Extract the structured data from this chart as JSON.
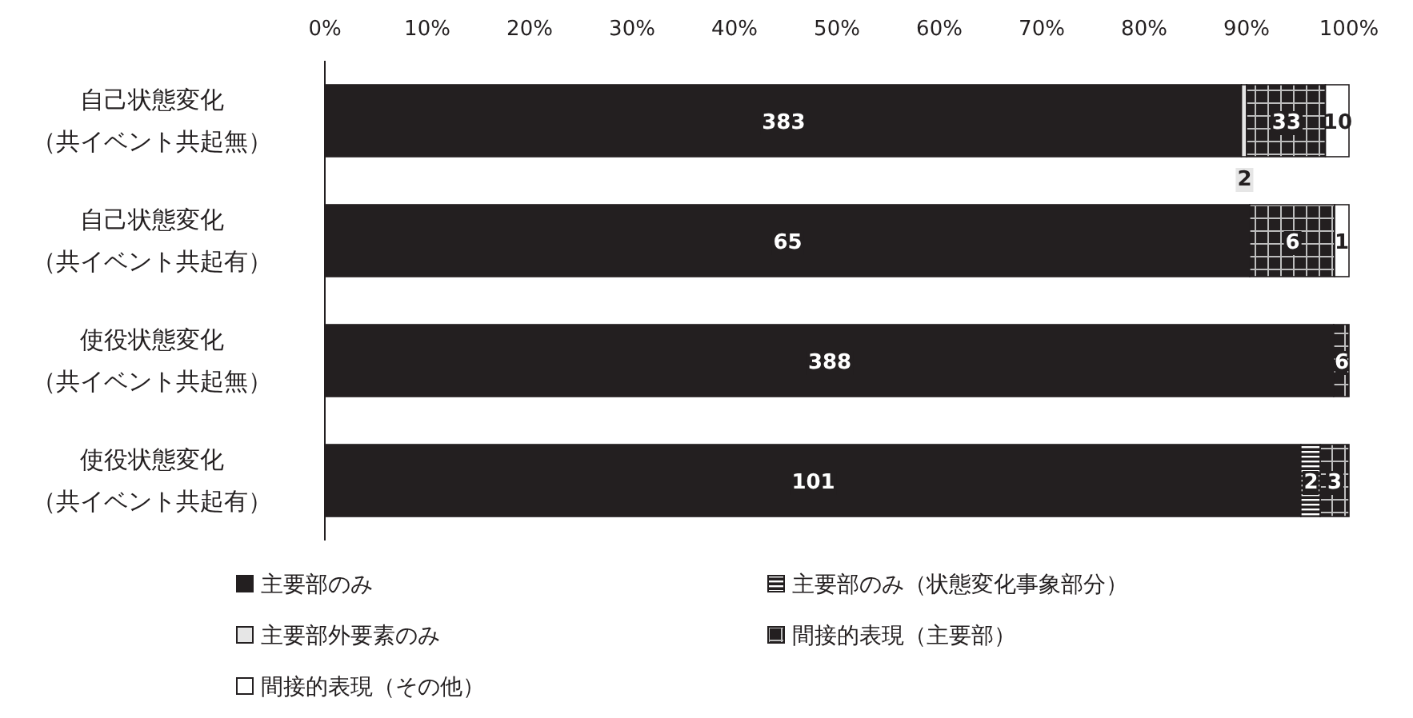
{
  "chart_data": {
    "type": "bar",
    "orientation": "horizontal",
    "stacked": true,
    "categories": [
      "自己状態変化（共イベント共起無）",
      "自己状態変化（共イベント共起有）",
      "使役状態変化（共イベント共起無）",
      "使役状態変化（共イベント共起有）"
    ],
    "xlim": [
      0,
      100
    ],
    "xticks": [
      {
        "value": 0,
        "label": "0%"
      },
      {
        "value": 10,
        "label": "10%"
      },
      {
        "value": 20,
        "label": "20%"
      },
      {
        "value": 30,
        "label": "30%"
      },
      {
        "value": 40,
        "label": "40%"
      },
      {
        "value": 50,
        "label": "50%"
      },
      {
        "value": 60,
        "label": "60%"
      },
      {
        "value": 70,
        "label": "70%"
      },
      {
        "value": 80,
        "label": "80%"
      },
      {
        "value": 90,
        "label": "90%"
      },
      {
        "value": 100,
        "label": "100%"
      }
    ],
    "grid": false,
    "legend": "bottom",
    "series": [
      {
        "name": "主要部のみ",
        "color": "#231f20",
        "values": [
          89.5,
          90.3,
          98.5,
          95.3
        ]
      },
      {
        "name": "主要部のみ（状態変化事象部分）",
        "color": "#231f20",
        "values": [
          null,
          null,
          null,
          1.9
        ]
      },
      {
        "name": "主要部外要素のみ",
        "color": "#e6e6e6",
        "values": [
          0.5,
          null,
          null,
          null
        ]
      },
      {
        "name": "間接的表現（主要部）",
        "color": "#231f20",
        "values": [
          7.7,
          8.3,
          1.5,
          2.8
        ]
      },
      {
        "name": "間接的表現（その他）",
        "color": "#ffffff",
        "values": [
          2.3,
          1.4,
          null,
          null
        ]
      }
    ],
    "annotations": [
      {
        "text": "383",
        "x": 44.8,
        "y": "自己状態変化（共イベント共起無）"
      },
      {
        "text": "2",
        "x": 89.8,
        "y": "自己状態変化（共イベント共起無）"
      },
      {
        "text": "33",
        "x": 93.9,
        "y": "自己状態変化（共イベント共起無）"
      },
      {
        "text": "10",
        "x": 98.9,
        "y": "自己状態変化（共イベント共起無）"
      },
      {
        "text": "65",
        "x": 45.2,
        "y": "自己状態変化（共イベント共起有）"
      },
      {
        "text": "6",
        "x": 94.5,
        "y": "自己状態変化（共イベント共起有）"
      },
      {
        "text": "1",
        "x": 99.3,
        "y": "自己状態変化（共イベント共起有）"
      },
      {
        "text": "388",
        "x": 49.3,
        "y": "使役状態変化（共イベント共起無）"
      },
      {
        "text": "6",
        "x": 99.3,
        "y": "使役状態変化（共イベント共起無）"
      },
      {
        "text": "101",
        "x": 47.7,
        "y": "使役状態変化（共イベント共起有）"
      },
      {
        "text": "2",
        "x": 96.3,
        "y": "使役状態変化（共イベント共起有）"
      },
      {
        "text": "3",
        "x": 98.6,
        "y": "使役状態変化（共イベント共起有）"
      }
    ]
  }
}
